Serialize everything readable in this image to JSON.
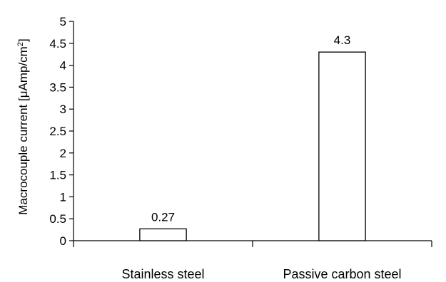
{
  "chart_data": {
    "type": "bar",
    "categories": [
      "Stainless steel",
      "Passive carbon steel"
    ],
    "values": [
      0.27,
      4.3
    ],
    "data_labels": [
      "0.27",
      "4.3"
    ],
    "ylabel": "Macrocouple current [",
    "ylabel_mu": "μ",
    "ylabel_unit": "Amp/cm",
    "ylabel_sup": "2",
    "ylabel_close": "]",
    "ylim": [
      0,
      5
    ],
    "yticks": [
      0,
      0.5,
      1,
      1.5,
      2,
      2.5,
      3,
      3.5,
      4,
      4.5,
      5
    ],
    "ytick_labels": [
      "0",
      "0.5",
      "1",
      "1.5",
      "2",
      "2.5",
      "3",
      "3.5",
      "4",
      "4.5",
      "5"
    ],
    "grid": false,
    "colors": {
      "bar_fill": "#ffffff",
      "bar_stroke": "#000000",
      "axis": "#000000"
    }
  }
}
